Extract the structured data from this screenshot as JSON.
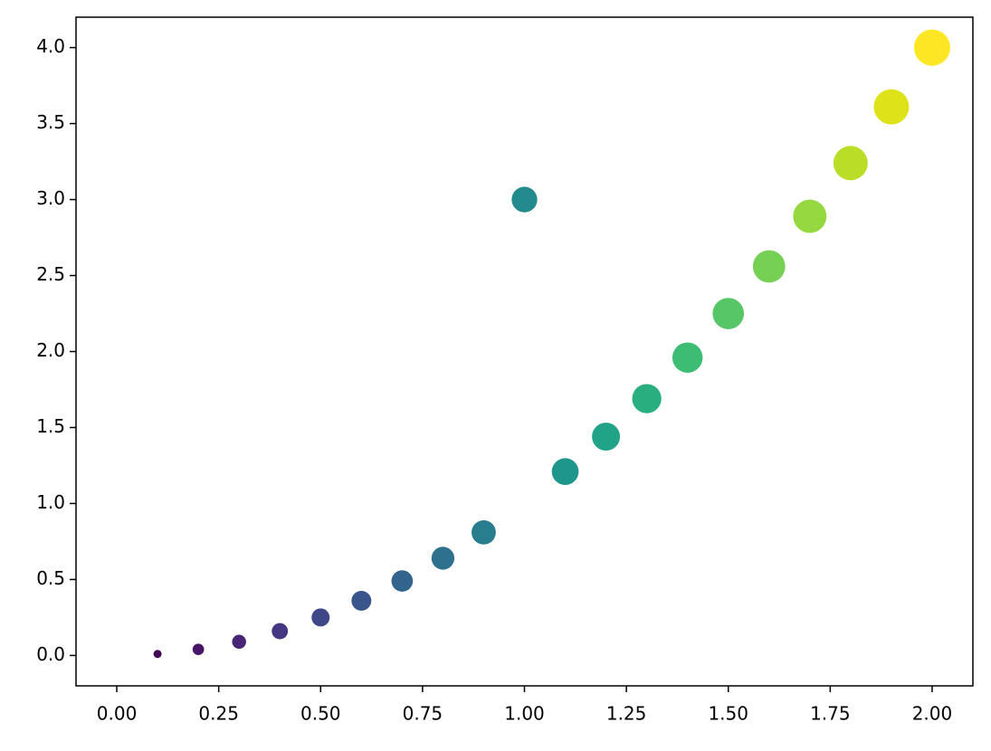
{
  "chart_data": {
    "type": "scatter",
    "x": [
      0.1,
      0.2,
      0.3,
      0.4,
      0.5,
      0.6,
      0.7,
      0.8,
      0.9,
      1.0,
      1.1,
      1.2,
      1.3,
      1.4,
      1.5,
      1.6,
      1.7,
      1.8,
      1.9,
      2.0
    ],
    "values": [
      0.01,
      0.04,
      0.09,
      0.16,
      0.25,
      0.36,
      0.49,
      0.64,
      0.81,
      3.0,
      1.21,
      1.44,
      1.69,
      1.96,
      2.25,
      2.56,
      2.89,
      3.24,
      3.61,
      4.0
    ],
    "colors": [
      "#440154",
      "#481467",
      "#482576",
      "#453781",
      "#3f4788",
      "#39558c",
      "#32648e",
      "#2d718e",
      "#287d8e",
      "#238a8d",
      "#1f968b",
      "#20a386",
      "#29af7f",
      "#3dbc74",
      "#56c667",
      "#75d054",
      "#95d840",
      "#bade28",
      "#dde318",
      "#fde725"
    ],
    "xlim": [
      -0.1,
      2.1
    ],
    "ylim": [
      -0.2,
      4.2
    ],
    "xticks": [
      {
        "value": 0,
        "label": "0.00"
      },
      {
        "value": 0.25,
        "label": "0.25"
      },
      {
        "value": 0.5,
        "label": "0.50"
      },
      {
        "value": 0.75,
        "label": "0.75"
      },
      {
        "value": 1,
        "label": "1.00"
      },
      {
        "value": 1.25,
        "label": "1.25"
      },
      {
        "value": 1.5,
        "label": "1.50"
      },
      {
        "value": 1.75,
        "label": "1.75"
      },
      {
        "value": 2,
        "label": "2.00"
      }
    ],
    "yticks": [
      {
        "value": 0,
        "label": "0.0"
      },
      0.5,
      {
        "value": 1,
        "label": "1.0"
      },
      1.5,
      {
        "value": 2,
        "label": "2.0"
      },
      2.5,
      {
        "value": 3,
        "label": "3.0"
      },
      3.5,
      {
        "value": 4,
        "label": "4.0"
      }
    ],
    "grid": false
  }
}
